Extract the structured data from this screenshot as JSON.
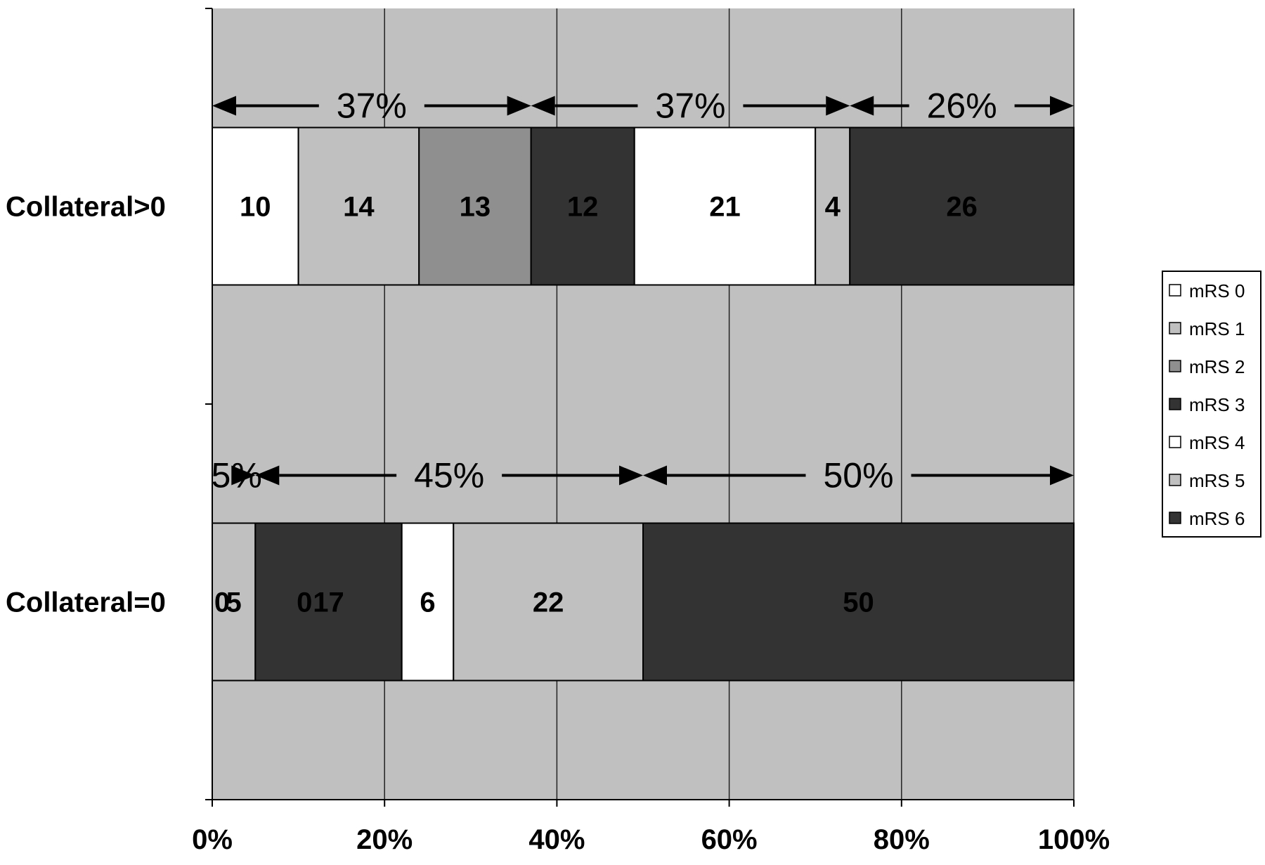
{
  "chart_data": {
    "type": "bar",
    "orientation": "horizontal",
    "stacked": "100%",
    "categories": [
      "Collateral>0",
      "Collateral=0"
    ],
    "series": [
      {
        "name": "mRS 0",
        "values": [
          10,
          0
        ],
        "color": "#ffffff"
      },
      {
        "name": "mRS 1",
        "values": [
          14,
          5
        ],
        "color": "#c0c0c0"
      },
      {
        "name": "mRS 2",
        "values": [
          13,
          0
        ],
        "color": "#8f8f8f"
      },
      {
        "name": "mRS 3",
        "values": [
          12,
          17
        ],
        "color": "#333333"
      },
      {
        "name": "mRS 4",
        "values": [
          21,
          6
        ],
        "color": "#ffffff"
      },
      {
        "name": "mRS 5",
        "values": [
          4,
          22
        ],
        "color": "#c0c0c0"
      },
      {
        "name": "mRS 6",
        "values": [
          26,
          50
        ],
        "color": "#333333"
      }
    ],
    "group_annotations": [
      [
        {
          "label": "37%",
          "from": 0,
          "to": 37
        },
        {
          "label": "37%",
          "from": 37,
          "to": 74
        },
        {
          "label": "26%",
          "from": 74,
          "to": 100
        }
      ],
      [
        {
          "label": "5%",
          "from": 0,
          "to": 5
        },
        {
          "label": "45%",
          "from": 5,
          "to": 50
        },
        {
          "label": "50%",
          "from": 50,
          "to": 100
        }
      ]
    ],
    "xaxis_ticks": [
      "0%",
      "20%",
      "40%",
      "60%",
      "80%",
      "100%"
    ],
    "xlim": [
      0,
      100
    ],
    "grid": true,
    "plot_background": "#c0c0c0",
    "legend_position": "right"
  }
}
